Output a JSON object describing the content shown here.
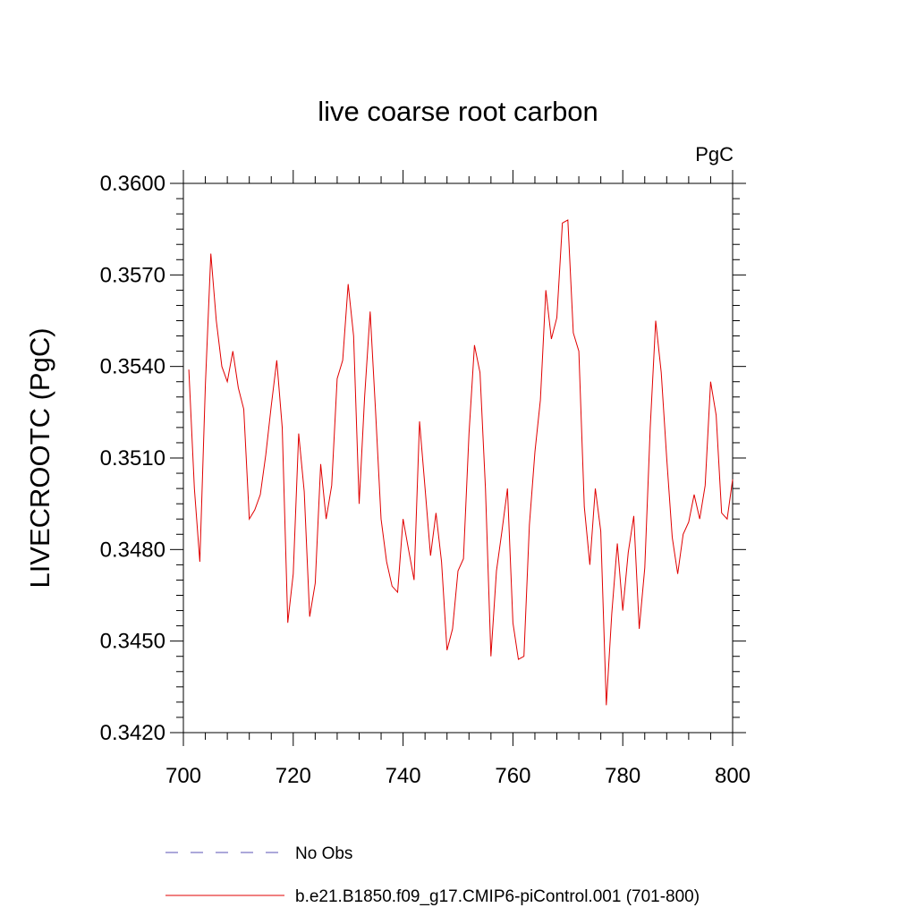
{
  "chart_data": {
    "type": "line",
    "title": "live coarse root carbon",
    "units_label": "PgC",
    "ylabel": "LIVECROOTC  (PgC)",
    "xlabel": "",
    "xlim": [
      700,
      800
    ],
    "ylim": [
      0.342,
      0.36
    ],
    "x_ticks": [
      700,
      720,
      740,
      760,
      780,
      800
    ],
    "x_tick_labels": [
      "700",
      "720",
      "740",
      "760",
      "780",
      "800"
    ],
    "y_ticks": [
      0.342,
      0.345,
      0.348,
      0.351,
      0.354,
      0.357,
      0.36
    ],
    "y_tick_labels": [
      "0.3420",
      "0.3450",
      "0.3480",
      "0.3510",
      "0.3540",
      "0.3570",
      "0.3600"
    ],
    "grid": false,
    "legend": [
      {
        "label": "No Obs",
        "color": "#5a50b4",
        "style": "dashed"
      },
      {
        "label": "b.e21.B1850.f09_g17.CMIP6-piControl.001 (701-800)",
        "color": "#e00000",
        "style": "solid"
      }
    ],
    "series": [
      {
        "name": "b.e21.B1850.f09_g17.CMIP6-piControl.001 (701-800)",
        "color": "#e00000",
        "x": [
          701,
          702,
          703,
          704,
          705,
          706,
          707,
          708,
          709,
          710,
          711,
          712,
          713,
          714,
          715,
          716,
          717,
          718,
          719,
          720,
          721,
          722,
          723,
          724,
          725,
          726,
          727,
          728,
          729,
          730,
          731,
          732,
          733,
          734,
          735,
          736,
          737,
          738,
          739,
          740,
          741,
          742,
          743,
          744,
          745,
          746,
          747,
          748,
          749,
          750,
          751,
          752,
          753,
          754,
          755,
          756,
          757,
          758,
          759,
          760,
          761,
          762,
          763,
          764,
          765,
          766,
          767,
          768,
          769,
          770,
          771,
          772,
          773,
          774,
          775,
          776,
          777,
          778,
          779,
          780,
          781,
          782,
          783,
          784,
          785,
          786,
          787,
          788,
          789,
          790,
          791,
          792,
          793,
          794,
          795,
          796,
          797,
          798,
          799,
          800
        ],
        "values": [
          0.3539,
          0.35,
          0.3476,
          0.3534,
          0.3577,
          0.3555,
          0.354,
          0.3535,
          0.3545,
          0.3533,
          0.3526,
          0.349,
          0.3493,
          0.3498,
          0.3511,
          0.3527,
          0.3542,
          0.352,
          0.3456,
          0.3472,
          0.3518,
          0.3499,
          0.3458,
          0.3469,
          0.3508,
          0.349,
          0.3501,
          0.3536,
          0.3542,
          0.3567,
          0.355,
          0.3495,
          0.353,
          0.3558,
          0.3525,
          0.349,
          0.3476,
          0.3468,
          0.3466,
          0.349,
          0.348,
          0.347,
          0.3522,
          0.35,
          0.3478,
          0.3492,
          0.3476,
          0.3447,
          0.3454,
          0.3473,
          0.3477,
          0.3518,
          0.3547,
          0.3538,
          0.35,
          0.3445,
          0.3473,
          0.3486,
          0.35,
          0.3456,
          0.3444,
          0.3445,
          0.3488,
          0.3512,
          0.3529,
          0.3565,
          0.3549,
          0.3556,
          0.3587,
          0.3588,
          0.3551,
          0.3545,
          0.3494,
          0.3475,
          0.35,
          0.3486,
          0.3429,
          0.3459,
          0.3482,
          0.346,
          0.3479,
          0.3491,
          0.3454,
          0.3474,
          0.352,
          0.3555,
          0.3538,
          0.351,
          0.3484,
          0.3472,
          0.3485,
          0.3489,
          0.3498,
          0.349,
          0.3501,
          0.3535,
          0.3524,
          0.3492,
          0.349,
          0.3503
        ]
      }
    ]
  }
}
